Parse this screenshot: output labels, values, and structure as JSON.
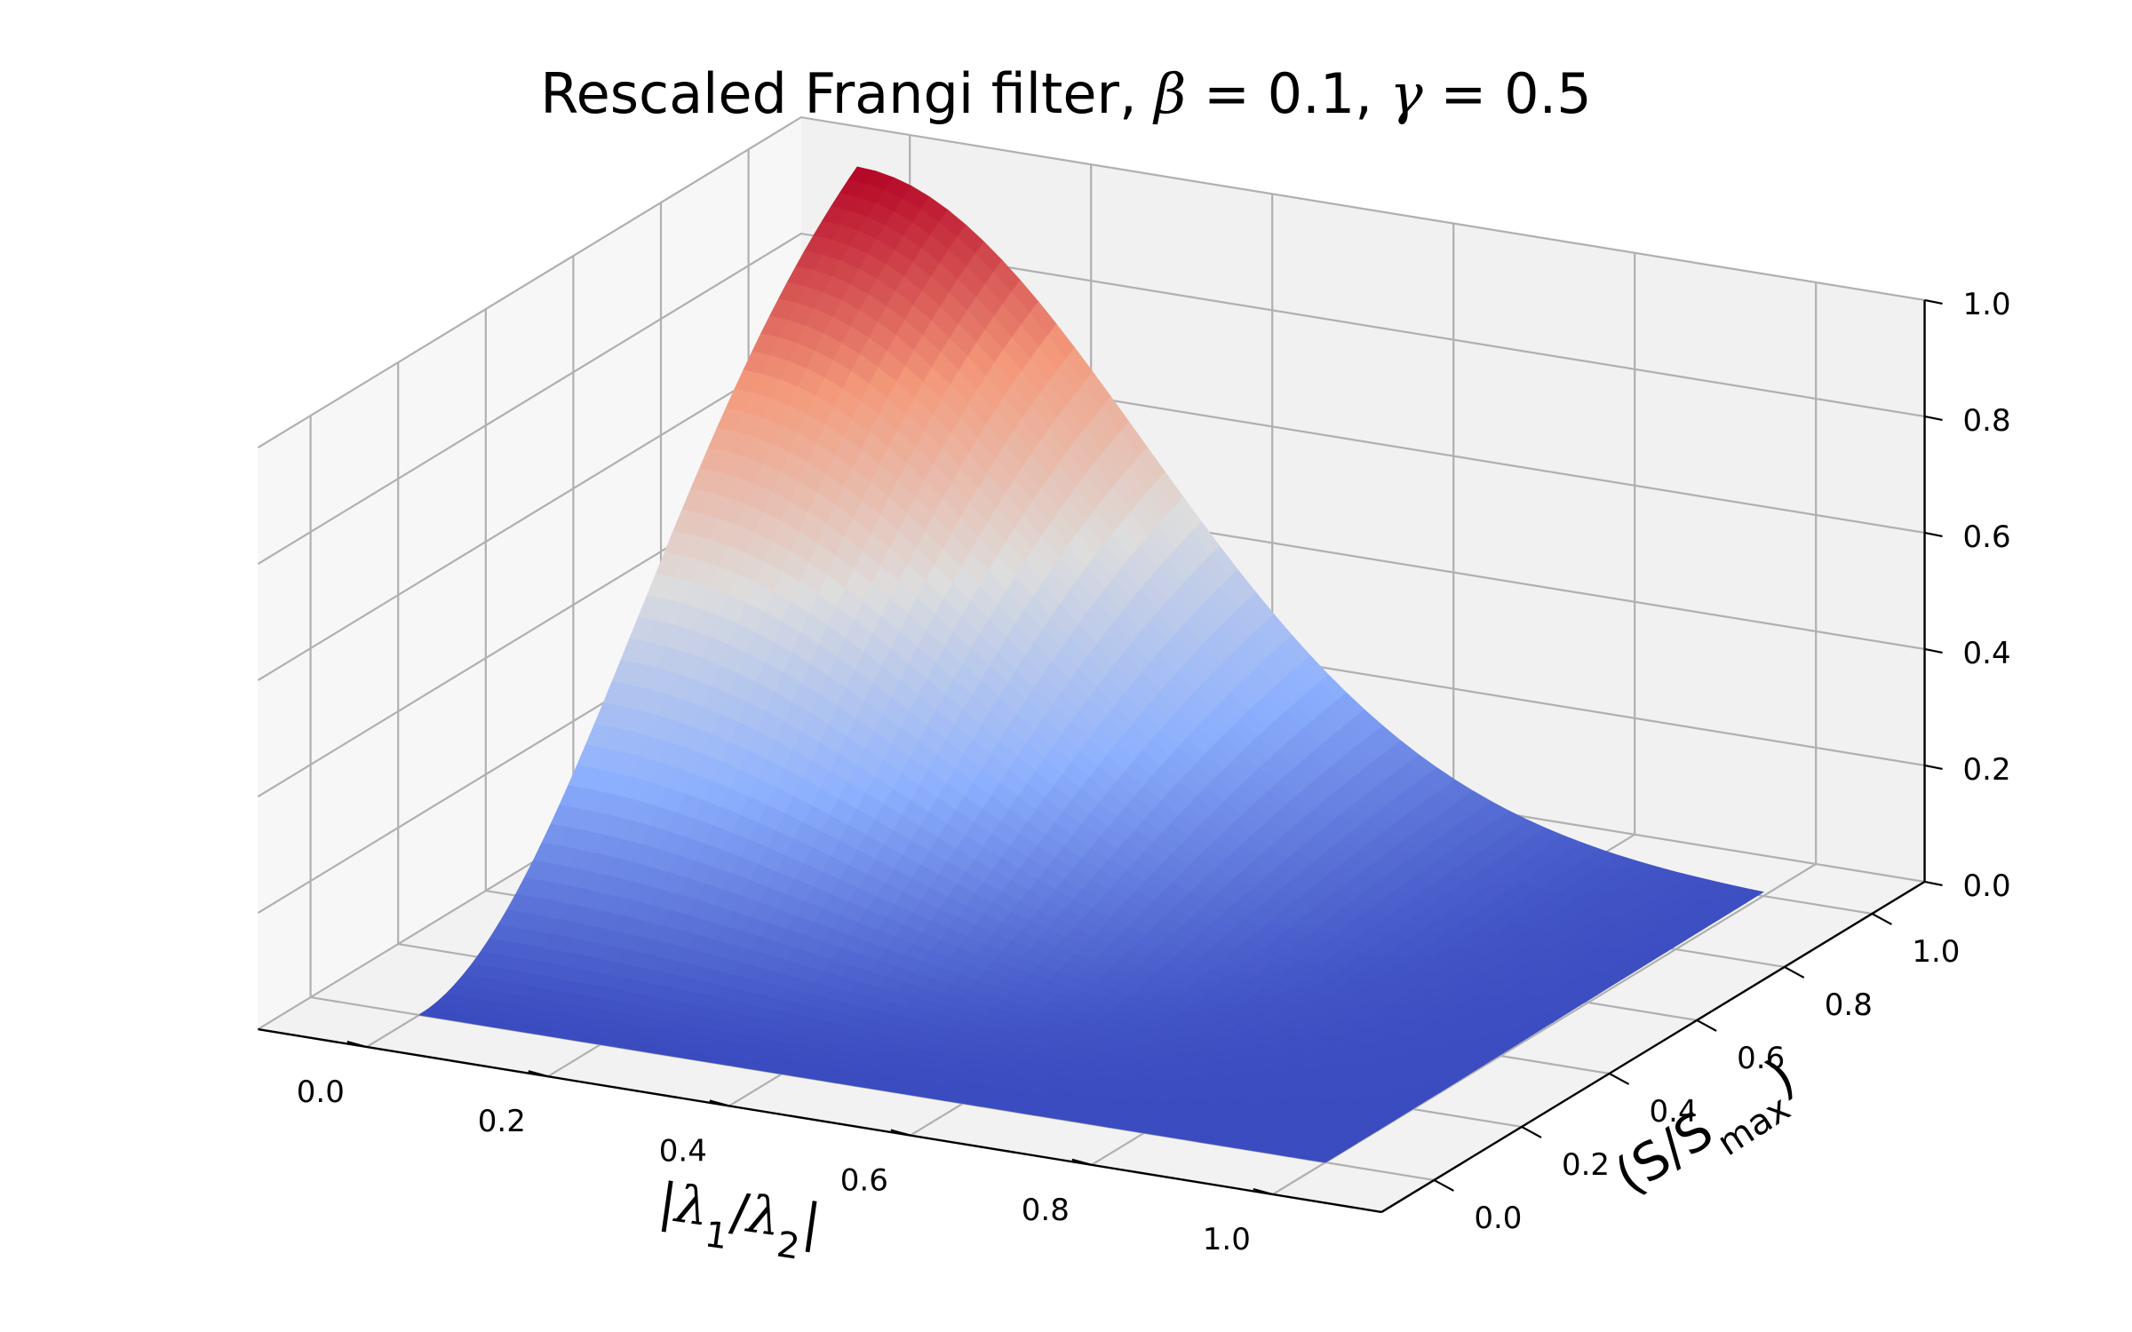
{
  "chart_data": {
    "type": "surface3d",
    "title": {
      "prefix": "Rescaled Frangi filter, ",
      "beta_symbol": "β",
      "beta_value": "0.1",
      "gamma_symbol": "γ",
      "gamma_value": "0.5"
    },
    "xlabel": {
      "bar_open": "|",
      "lambda": "λ",
      "sub1": "1",
      "slash": "/",
      "sub2": "2",
      "bar_close": "|"
    },
    "ylabel": {
      "open": "(S/S",
      "sub": "max",
      "close": ")"
    },
    "x_ticks": [
      "0.0",
      "0.2",
      "0.4",
      "0.6",
      "0.8",
      "1.0"
    ],
    "y_ticks": [
      "0.0",
      "0.2",
      "0.4",
      "0.6",
      "0.8",
      "1.0"
    ],
    "z_ticks": [
      "0.0",
      "0.2",
      "0.4",
      "0.6",
      "0.8",
      "1.0"
    ],
    "xlim": [
      0,
      1
    ],
    "ylim": [
      0,
      1
    ],
    "zlim": [
      0,
      1
    ],
    "beta": 0.1,
    "gamma": 0.5,
    "colormap": "coolwarm",
    "colormap_low": "#3b4cc0",
    "colormap_mid": "#dddddd",
    "colormap_high": "#b40426",
    "grid": true
  }
}
